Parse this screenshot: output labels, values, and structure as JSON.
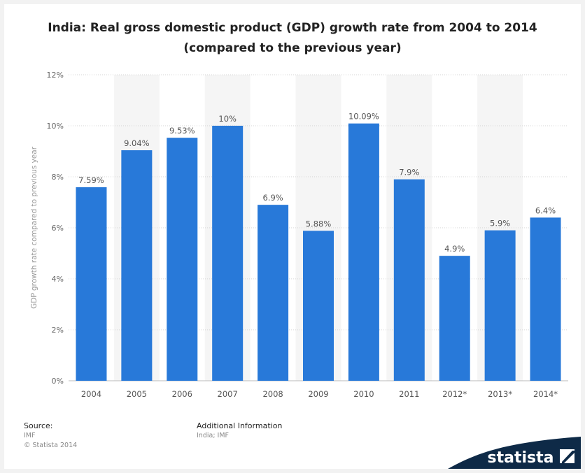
{
  "title": {
    "line1": "India: Real gross domestic product (GDP) growth rate from 2004 to 2014",
    "line2": "(compared to the previous year)"
  },
  "chart_data": {
    "type": "bar",
    "categories": [
      "2004",
      "2005",
      "2006",
      "2007",
      "2008",
      "2009",
      "2010",
      "2011",
      "2012*",
      "2013*",
      "2014*"
    ],
    "values": [
      7.59,
      9.04,
      9.53,
      10,
      6.9,
      5.88,
      10.09,
      7.9,
      4.9,
      5.9,
      6.4
    ],
    "data_labels": [
      "7.59%",
      "9.04%",
      "9.53%",
      "10%",
      "6.9%",
      "5.88%",
      "10.09%",
      "7.9%",
      "4.9%",
      "5.9%",
      "6.4%"
    ],
    "yticks": [
      0,
      2,
      4,
      6,
      8,
      10,
      12
    ],
    "ytick_labels": [
      "0%",
      "2%",
      "4%",
      "6%",
      "8%",
      "10%",
      "12%"
    ],
    "ylim": [
      0,
      12
    ],
    "ylabel": "GDP growth rate compared to previous year",
    "xlabel": "",
    "grid": "horizontal dotted",
    "bar_color": "#2879d9",
    "alt_band_color": "#f5f5f5"
  },
  "footer": {
    "source_label": "Source:",
    "source_value": "IMF",
    "copyright": "© Statista 2014",
    "additional_label": "Additional Information",
    "additional_value": "India; IMF"
  },
  "brand": {
    "name": "statista",
    "bg_color": "#0e2a47",
    "accent_color": "#2879d9"
  }
}
